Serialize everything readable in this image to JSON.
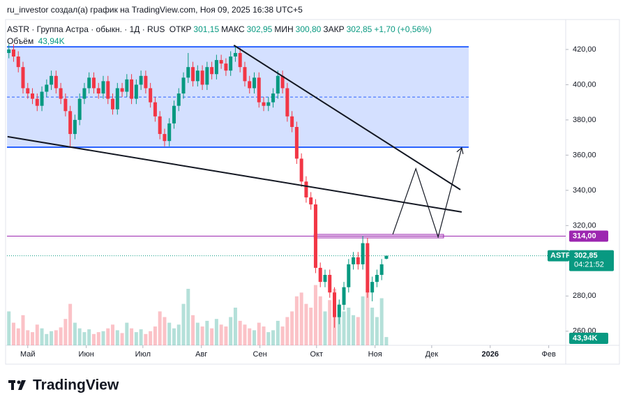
{
  "chart_data": {
    "type": "candlestick",
    "attribution": "ru_investor создал(а) график на TradingView.com, Ноя 09, 2025 16:38 UTC+5",
    "symbol_title": "ASTR · Группа Астра · обыкн. · 1Д · RUS",
    "ohlc_legend": [
      {
        "name": "ОТКР",
        "value": 301.15,
        "label": "301,15"
      },
      {
        "name": "МАКС",
        "value": 302.95,
        "label": "302,95"
      },
      {
        "name": "МИН",
        "value": 300.8,
        "label": "300,80"
      },
      {
        "name": "ЗАКР",
        "value": 302.85,
        "label": "302,85"
      }
    ],
    "change": {
      "value": 1.7,
      "label": "+1,70"
    },
    "change_pct": {
      "value": 0.56,
      "label": "(+0,56%)"
    },
    "volume_name": "Объём",
    "last_volume_label": "43,94K",
    "symbol": "ASTR",
    "last_price": {
      "value": 302.85,
      "label": "302,85"
    },
    "countdown": "04:21:52",
    "footer_brand": "TradingView",
    "up_color": "#089981",
    "down_color": "#f23645",
    "grid": false,
    "xlim": [
      -11,
      285
    ],
    "ylim": [
      252,
      437
    ],
    "xticks": [
      {
        "value": 0,
        "label": "Май"
      },
      {
        "value": 31,
        "label": "Июн"
      },
      {
        "value": 61,
        "label": "Июл"
      },
      {
        "value": 92,
        "label": "Авг"
      },
      {
        "value": 123,
        "label": "Сен"
      },
      {
        "value": 153,
        "label": "Окт"
      },
      {
        "value": 184,
        "label": "Ноя"
      },
      {
        "value": 214,
        "label": "Дек"
      },
      {
        "value": 245,
        "label": "2026"
      },
      {
        "value": 276,
        "label": "Фев"
      }
    ],
    "yticks": [
      {
        "value": 260,
        "label": "260,00"
      },
      {
        "value": 280,
        "label": "280,00"
      },
      {
        "value": 320,
        "label": "320,00"
      },
      {
        "value": 340,
        "label": "340,00"
      },
      {
        "value": 360,
        "label": "360,00"
      },
      {
        "value": 380,
        "label": "380,00"
      },
      {
        "value": 400,
        "label": "400,00"
      },
      {
        "value": 420,
        "label": "420,00"
      }
    ],
    "x": [
      -10,
      -7.5,
      -5,
      -2.5,
      0,
      2.5,
      5,
      7.5,
      10,
      12.5,
      15,
      17.5,
      20,
      22.5,
      25,
      27.5,
      30,
      32.5,
      35,
      37.5,
      40,
      42.5,
      45,
      47.5,
      50,
      52.5,
      55,
      57.5,
      60,
      62.5,
      65,
      67.5,
      70,
      72.5,
      75,
      77.5,
      80,
      82.5,
      85,
      87.5,
      90,
      92.5,
      95,
      97.5,
      100,
      102.5,
      105,
      107.5,
      110,
      112.5,
      115,
      117.5,
      120,
      122.5,
      125,
      127.5,
      130,
      132.5,
      135,
      137.5,
      140,
      142.5,
      145,
      147.5,
      150,
      152.5,
      155,
      157.5,
      160,
      162.5,
      165,
      167.5,
      170,
      172.5,
      175,
      177.5,
      180,
      182.5,
      185,
      187.5,
      190
    ],
    "open": [
      418,
      420,
      416,
      410,
      398,
      395,
      392,
      388,
      396,
      400,
      405,
      398,
      392,
      385,
      372,
      380,
      392,
      398,
      404,
      398,
      395,
      402,
      392,
      386,
      398,
      396,
      403,
      392,
      400,
      405,
      398,
      390,
      382,
      372,
      368,
      378,
      388,
      395,
      404,
      410,
      402,
      408,
      400,
      410,
      406,
      414,
      412,
      408,
      416,
      418,
      410,
      402,
      398,
      404,
      390,
      388,
      390,
      395,
      405,
      398,
      382,
      376,
      358,
      345,
      336,
      332,
      296,
      288,
      292,
      282,
      268,
      275,
      285,
      298,
      302,
      298,
      310,
      282,
      288,
      292,
      301.15
    ],
    "high": [
      423,
      423,
      419,
      413,
      401,
      398,
      395,
      399,
      403,
      408,
      408,
      401,
      395,
      388,
      383,
      395,
      401,
      407,
      407,
      401,
      405,
      405,
      395,
      401,
      401,
      406,
      406,
      403,
      408,
      408,
      401,
      393,
      385,
      375,
      381,
      391,
      398,
      407,
      418,
      413,
      411,
      411,
      413,
      413,
      417,
      417,
      415,
      419,
      422,
      421,
      413,
      405,
      407,
      407,
      393,
      393,
      398,
      408,
      408,
      401,
      385,
      379,
      361,
      348,
      339,
      335,
      299,
      295,
      295,
      285,
      278,
      288,
      301,
      305,
      305,
      314,
      313,
      291,
      295,
      301,
      302.95
    ],
    "low": [
      415,
      413,
      407,
      395,
      392,
      389,
      385,
      385,
      393,
      397,
      395,
      389,
      382,
      365,
      369,
      377,
      389,
      395,
      395,
      392,
      392,
      389,
      383,
      383,
      393,
      393,
      389,
      389,
      397,
      395,
      387,
      379,
      369,
      365,
      365,
      375,
      385,
      392,
      401,
      399,
      399,
      397,
      397,
      403,
      403,
      409,
      405,
      405,
      413,
      407,
      399,
      395,
      395,
      387,
      385,
      385,
      387,
      392,
      395,
      379,
      373,
      355,
      342,
      333,
      329,
      293,
      285,
      285,
      279,
      262,
      264,
      272,
      282,
      295,
      295,
      295,
      279,
      277,
      285,
      289,
      300.8
    ],
    "close": [
      420,
      416,
      410,
      398,
      395,
      392,
      388,
      396,
      400,
      405,
      398,
      392,
      385,
      372,
      380,
      392,
      398,
      404,
      398,
      395,
      402,
      392,
      386,
      398,
      396,
      403,
      392,
      400,
      405,
      398,
      390,
      382,
      372,
      368,
      378,
      388,
      395,
      404,
      410,
      402,
      408,
      400,
      410,
      406,
      414,
      412,
      408,
      416,
      418,
      410,
      402,
      398,
      404,
      390,
      388,
      390,
      395,
      405,
      398,
      382,
      376,
      358,
      345,
      336,
      332,
      296,
      288,
      292,
      282,
      268,
      275,
      285,
      298,
      302,
      298,
      310,
      282,
      288,
      292,
      298,
      302.85
    ],
    "volume": [
      180,
      120,
      90,
      160,
      80,
      70,
      110,
      90,
      60,
      75,
      80,
      95,
      140,
      220,
      120,
      90,
      70,
      85,
      60,
      70,
      75,
      90,
      110,
      80,
      65,
      120,
      90,
      70,
      85,
      60,
      75,
      100,
      180,
      150,
      120,
      90,
      110,
      220,
      300,
      160,
      120,
      100,
      130,
      90,
      140,
      110,
      100,
      150,
      200,
      130,
      110,
      90,
      80,
      120,
      100,
      70,
      80,
      130,
      100,
      150,
      180,
      260,
      280,
      220,
      200,
      320,
      260,
      180,
      240,
      300,
      220,
      180,
      200,
      160,
      150,
      260,
      300,
      200,
      150,
      250,
      43.94
    ],
    "channel": {
      "x": [
        -11,
        233.6
      ],
      "top": 421.5,
      "bottom": 364.5,
      "mid": 393,
      "color": "#2962ff"
    },
    "trendlines": [
      {
        "x": [
          109.2,
          229.2
        ],
        "y": [
          422.4,
          340.4
        ]
      },
      {
        "x": [
          -10.7,
          229.9
        ],
        "y": [
          370.5,
          327.7
        ]
      }
    ],
    "projection": {
      "x": [
        193.4,
        205.6,
        217.4,
        229.9
      ],
      "y": [
        315,
        352.3,
        313.5,
        364.2
      ]
    },
    "level": {
      "value": 314,
      "label": "314,00",
      "color": "#9c27b0"
    },
    "zone": {
      "x": [
        151.7,
        220.3
      ],
      "y": [
        313,
        315
      ]
    }
  }
}
